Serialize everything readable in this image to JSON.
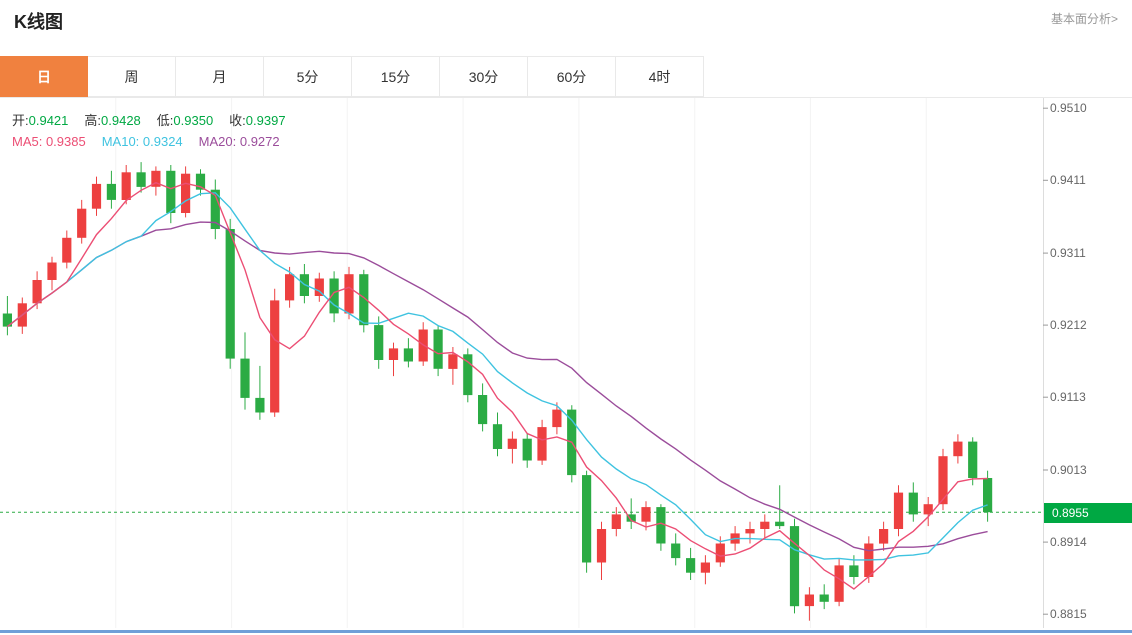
{
  "header": {
    "title": "K线图",
    "link": "基本面分析>"
  },
  "tabs": {
    "active_bg": "#f0813f",
    "items": [
      {
        "label": "日",
        "active": true
      },
      {
        "label": "周",
        "active": false
      },
      {
        "label": "月",
        "active": false
      },
      {
        "label": "5分",
        "active": false
      },
      {
        "label": "15分",
        "active": false
      },
      {
        "label": "30分",
        "active": false
      },
      {
        "label": "60分",
        "active": false
      },
      {
        "label": "4时",
        "active": false
      }
    ]
  },
  "legend": {
    "ohlc": [
      {
        "label": "开:",
        "value": "0.9421"
      },
      {
        "label": "高:",
        "value": "0.9428"
      },
      {
        "label": "低:",
        "value": "0.9350"
      },
      {
        "label": "收:",
        "value": "0.9397"
      }
    ],
    "ohlc_value_color": "#00a843",
    "ma": [
      {
        "label": "MA5:",
        "value": "0.9385",
        "color": "#ec4e74"
      },
      {
        "label": "MA10:",
        "value": "0.9324",
        "color": "#3fc3e0"
      },
      {
        "label": "MA20:",
        "value": "0.9272",
        "color": "#9b4d9b"
      }
    ]
  },
  "chart_data": {
    "type": "candlestick",
    "title": "K线图",
    "period": "日",
    "ylim": [
      0.8796,
      0.9524
    ],
    "y_ticks": [
      0.951,
      0.9411,
      0.9311,
      0.9212,
      0.9113,
      0.9013,
      0.8914,
      0.8815
    ],
    "current_price": 0.8955,
    "current_price_label": "0.8955",
    "up_color": "#ed4040",
    "down_color": "#2bab44",
    "badge_color": "#00a843",
    "grid_columns": 9,
    "ma_windows": [
      5,
      10,
      20
    ],
    "ma_colors": [
      "#ec4e74",
      "#3fc3e0",
      "#9b4d9b"
    ],
    "candles": [
      [
        0.9228,
        0.9252,
        0.9198,
        0.921
      ],
      [
        0.921,
        0.925,
        0.92,
        0.9242
      ],
      [
        0.9242,
        0.9286,
        0.9234,
        0.9274
      ],
      [
        0.9274,
        0.9306,
        0.926,
        0.9298
      ],
      [
        0.9298,
        0.9342,
        0.929,
        0.9332
      ],
      [
        0.9332,
        0.9384,
        0.9324,
        0.9372
      ],
      [
        0.9372,
        0.9416,
        0.9362,
        0.9406
      ],
      [
        0.9406,
        0.9424,
        0.9372,
        0.9384
      ],
      [
        0.9384,
        0.9432,
        0.9378,
        0.9422
      ],
      [
        0.9422,
        0.9436,
        0.9394,
        0.9402
      ],
      [
        0.9402,
        0.943,
        0.939,
        0.9424
      ],
      [
        0.9424,
        0.9432,
        0.9352,
        0.9366
      ],
      [
        0.9366,
        0.943,
        0.936,
        0.942
      ],
      [
        0.942,
        0.9426,
        0.939,
        0.9398
      ],
      [
        0.9398,
        0.9412,
        0.933,
        0.9344
      ],
      [
        0.9344,
        0.9358,
        0.9152,
        0.9166
      ],
      [
        0.9166,
        0.9202,
        0.9096,
        0.9112
      ],
      [
        0.9112,
        0.9156,
        0.9082,
        0.9092
      ],
      [
        0.9092,
        0.9262,
        0.9086,
        0.9246
      ],
      [
        0.9246,
        0.9292,
        0.9236,
        0.9282
      ],
      [
        0.9282,
        0.9296,
        0.9242,
        0.9252
      ],
      [
        0.9252,
        0.9284,
        0.9244,
        0.9276
      ],
      [
        0.9276,
        0.9286,
        0.9216,
        0.9228
      ],
      [
        0.9228,
        0.9292,
        0.922,
        0.9282
      ],
      [
        0.9282,
        0.9288,
        0.9202,
        0.9212
      ],
      [
        0.9212,
        0.9224,
        0.9152,
        0.9164
      ],
      [
        0.9164,
        0.9188,
        0.9142,
        0.918
      ],
      [
        0.918,
        0.9194,
        0.9154,
        0.9162
      ],
      [
        0.9162,
        0.9216,
        0.9156,
        0.9206
      ],
      [
        0.9206,
        0.9212,
        0.9142,
        0.9152
      ],
      [
        0.9152,
        0.9182,
        0.913,
        0.9172
      ],
      [
        0.9172,
        0.918,
        0.9106,
        0.9116
      ],
      [
        0.9116,
        0.9132,
        0.9066,
        0.9076
      ],
      [
        0.9076,
        0.9092,
        0.9032,
        0.9042
      ],
      [
        0.9042,
        0.9066,
        0.9022,
        0.9056
      ],
      [
        0.9056,
        0.9064,
        0.9016,
        0.9026
      ],
      [
        0.9026,
        0.9082,
        0.902,
        0.9072
      ],
      [
        0.9072,
        0.9106,
        0.9062,
        0.9096
      ],
      [
        0.9096,
        0.9102,
        0.8996,
        0.9006
      ],
      [
        0.9006,
        0.9012,
        0.8872,
        0.8886
      ],
      [
        0.8886,
        0.8942,
        0.8862,
        0.8932
      ],
      [
        0.8932,
        0.8962,
        0.8922,
        0.8952
      ],
      [
        0.8952,
        0.8974,
        0.8932,
        0.8942
      ],
      [
        0.8942,
        0.897,
        0.893,
        0.8962
      ],
      [
        0.8962,
        0.8966,
        0.8902,
        0.8912
      ],
      [
        0.8912,
        0.8926,
        0.8882,
        0.8892
      ],
      [
        0.8892,
        0.8906,
        0.8862,
        0.8872
      ],
      [
        0.8872,
        0.8896,
        0.8856,
        0.8886
      ],
      [
        0.8886,
        0.8922,
        0.888,
        0.8912
      ],
      [
        0.8912,
        0.8936,
        0.8902,
        0.8926
      ],
      [
        0.8926,
        0.8942,
        0.8912,
        0.8932
      ],
      [
        0.8932,
        0.8952,
        0.892,
        0.8942
      ],
      [
        0.8942,
        0.8992,
        0.8932,
        0.8936
      ],
      [
        0.8936,
        0.8946,
        0.8816,
        0.8826
      ],
      [
        0.8826,
        0.8852,
        0.8806,
        0.8842
      ],
      [
        0.8842,
        0.8856,
        0.8822,
        0.8832
      ],
      [
        0.8832,
        0.8892,
        0.8826,
        0.8882
      ],
      [
        0.8882,
        0.8896,
        0.8856,
        0.8866
      ],
      [
        0.8866,
        0.8922,
        0.8858,
        0.8912
      ],
      [
        0.8912,
        0.8942,
        0.8902,
        0.8932
      ],
      [
        0.8932,
        0.8992,
        0.8922,
        0.8982
      ],
      [
        0.8982,
        0.8996,
        0.8942,
        0.8952
      ],
      [
        0.8952,
        0.8976,
        0.8936,
        0.8966
      ],
      [
        0.8966,
        0.9042,
        0.8958,
        0.9032
      ],
      [
        0.9032,
        0.9062,
        0.9022,
        0.9052
      ],
      [
        0.9052,
        0.9058,
        0.8992,
        0.9002
      ],
      [
        0.9002,
        0.9012,
        0.8942,
        0.8955
      ]
    ]
  }
}
